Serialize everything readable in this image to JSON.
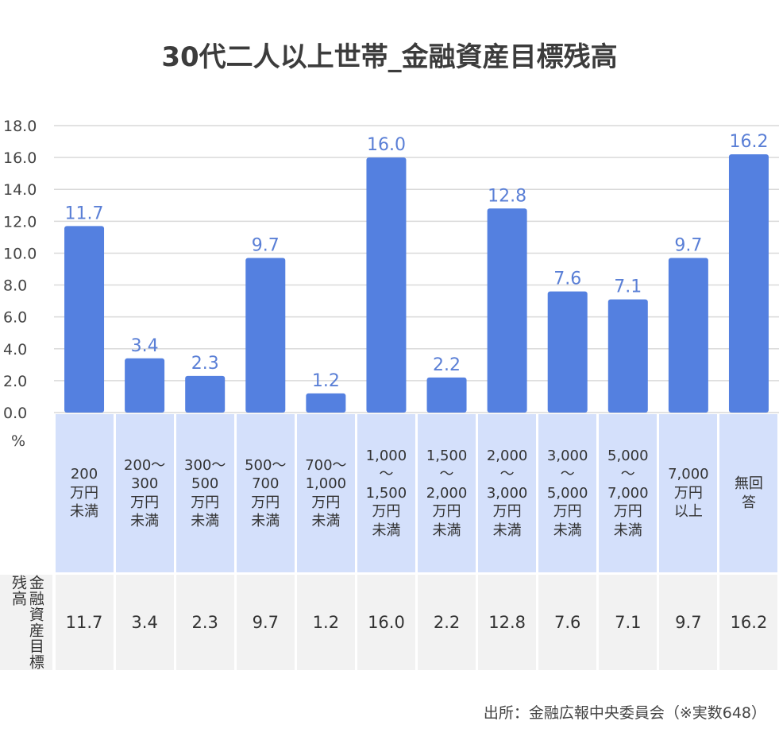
{
  "chart_data": {
    "type": "bar",
    "title": "30代二人以上世帯_金融資産目標残高",
    "unit_label": "%",
    "ylim": [
      0,
      18
    ],
    "yticks": [
      "0.0",
      "2.0",
      "4.0",
      "6.0",
      "8.0",
      "10.0",
      "12.0",
      "14.0",
      "16.0",
      "18.0"
    ],
    "categories": [
      "200\n万円\n未満",
      "200〜\n300\n万円\n未満",
      "300〜\n500\n万円\n未満",
      "500〜\n700\n万円\n未満",
      "700〜\n1,000\n万円\n未満",
      "1,000\n〜\n1,500\n万円\n未満",
      "1,500\n〜\n2,000\n万円\n未満",
      "2,000\n〜\n3,000\n万円\n未満",
      "3,000\n〜\n5,000\n万円\n未満",
      "5,000\n〜\n7,000\n万円\n未満",
      "7,000\n万円\n以上",
      "無回\n答"
    ],
    "values": [
      11.7,
      3.4,
      2.3,
      9.7,
      1.2,
      16.0,
      2.2,
      12.8,
      7.6,
      7.1,
      9.7,
      16.2
    ],
    "value_labels": [
      "11.7",
      "3.4",
      "2.3",
      "9.7",
      "1.2",
      "16.0",
      "2.2",
      "12.8",
      "7.6",
      "7.1",
      "9.7",
      "16.2"
    ],
    "series_name": "金融資産目標残高",
    "bar_color": "#5480e0",
    "label_color": "#5a7fd6",
    "category_bg": "#d4e0fb",
    "table_bg": "#f2f2f2"
  },
  "source": "出所：金融広報中央委員会（※実数648）"
}
